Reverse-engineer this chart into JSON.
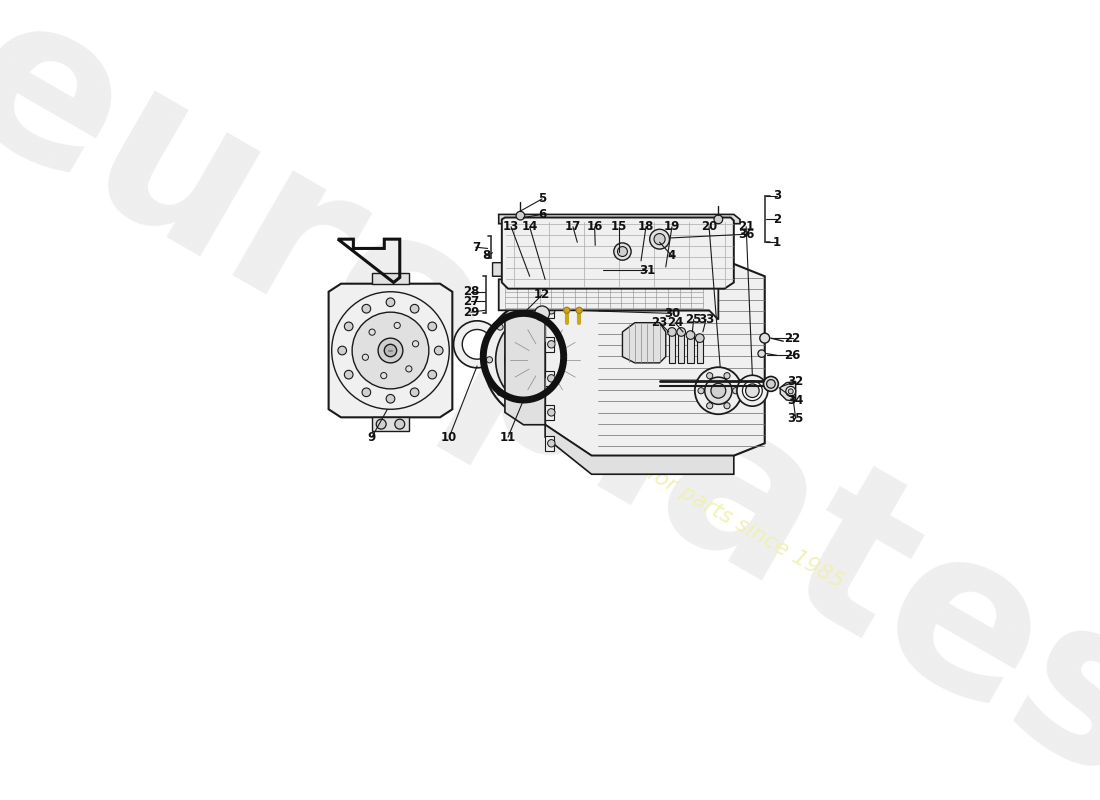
{
  "bg_color": "#ffffff",
  "watermark1": "europlates",
  "watermark2": "a passion for parts since 1985",
  "ec": "#1a1a1a",
  "lw": 1.0,
  "lw2": 1.5,
  "label_fs": 8.5,
  "label_color": "#111111",
  "part_fill": "#f0f0f0",
  "part_fill2": "#e0e0e0",
  "part_fill3": "#d0d0d0"
}
